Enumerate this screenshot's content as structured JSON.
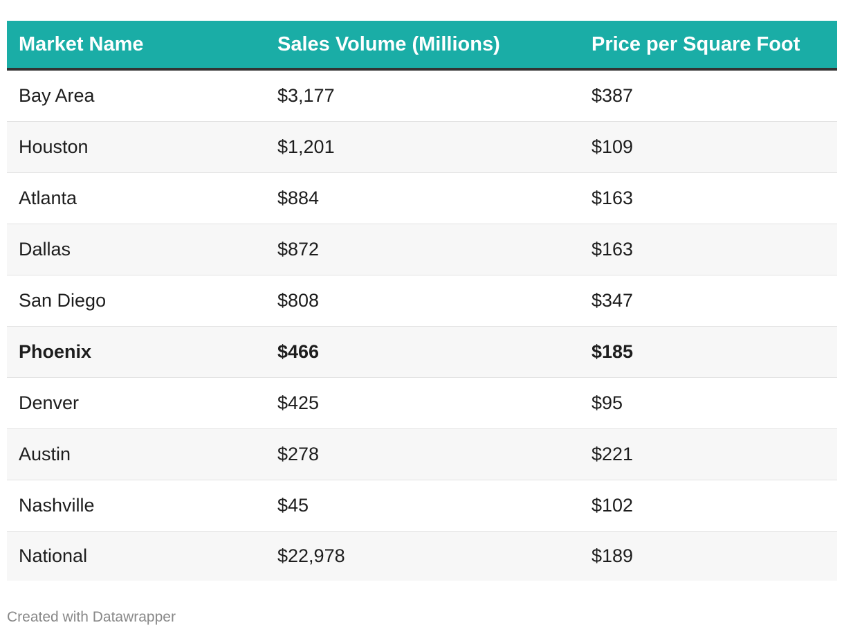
{
  "chart_data": {
    "type": "table",
    "columns": [
      "Market Name",
      "Sales Volume (Millions)",
      "Price per Square Foot"
    ],
    "rows": [
      {
        "market": "Bay Area",
        "sales": "$3,177",
        "price": "$387",
        "bold": false
      },
      {
        "market": "Houston",
        "sales": "$1,201",
        "price": "$109",
        "bold": false
      },
      {
        "market": "Atlanta",
        "sales": "$884",
        "price": "$163",
        "bold": false
      },
      {
        "market": "Dallas",
        "sales": "$872",
        "price": "$163",
        "bold": false
      },
      {
        "market": "San Diego",
        "sales": "$808",
        "price": "$347",
        "bold": false
      },
      {
        "market": "Phoenix",
        "sales": "$466",
        "price": "$185",
        "bold": true
      },
      {
        "market": "Denver",
        "sales": "$425",
        "price": "$95",
        "bold": false
      },
      {
        "market": "Austin",
        "sales": "$278",
        "price": "$221",
        "bold": false
      },
      {
        "market": "Nashville",
        "sales": "$45",
        "price": "$102",
        "bold": false
      },
      {
        "market": "National",
        "sales": "$22,978",
        "price": "$189",
        "bold": false
      }
    ],
    "header_color": "#1aada6",
    "header_rule_color": "#333333",
    "row_shade_color": "#f7f7f7"
  },
  "footer": {
    "credit": "Created with Datawrapper"
  }
}
